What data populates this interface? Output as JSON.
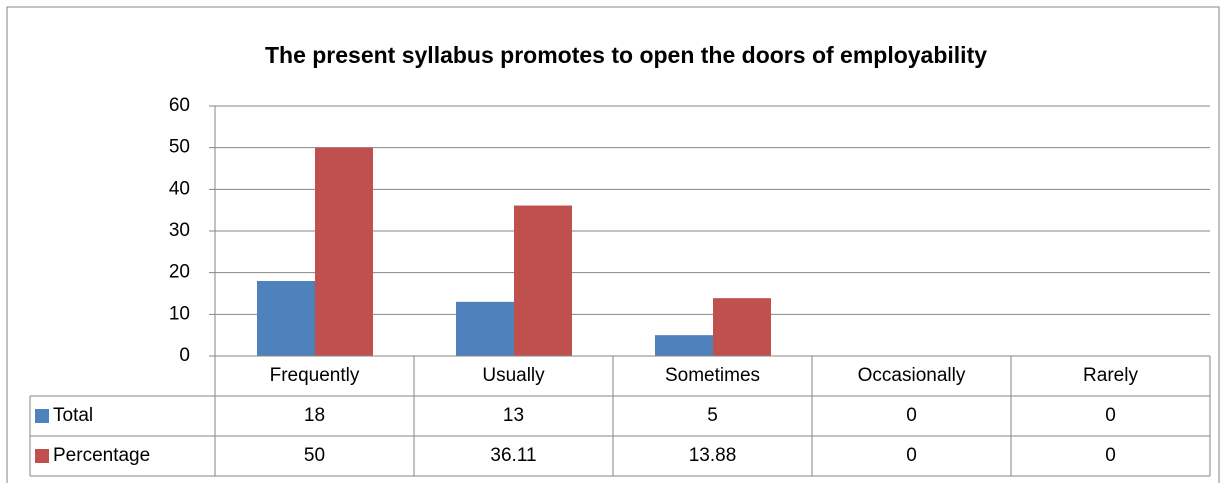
{
  "chart_data": {
    "type": "bar",
    "title": "The present syllabus promotes to open the doors of employability",
    "categories": [
      "Frequently",
      "Usually",
      "Sometimes",
      "Occasionally",
      "Rarely"
    ],
    "series": [
      {
        "name": "Total",
        "color": "#4f81bd",
        "values": [
          18,
          13,
          5,
          0,
          0
        ]
      },
      {
        "name": "Percentage",
        "color": "#c0504d",
        "values": [
          50,
          36.11,
          13.88,
          0,
          0
        ]
      }
    ],
    "ylim": [
      0,
      60
    ],
    "yticks": [
      0,
      10,
      20,
      30,
      40,
      50,
      60
    ],
    "grid": true,
    "data_table": true
  }
}
